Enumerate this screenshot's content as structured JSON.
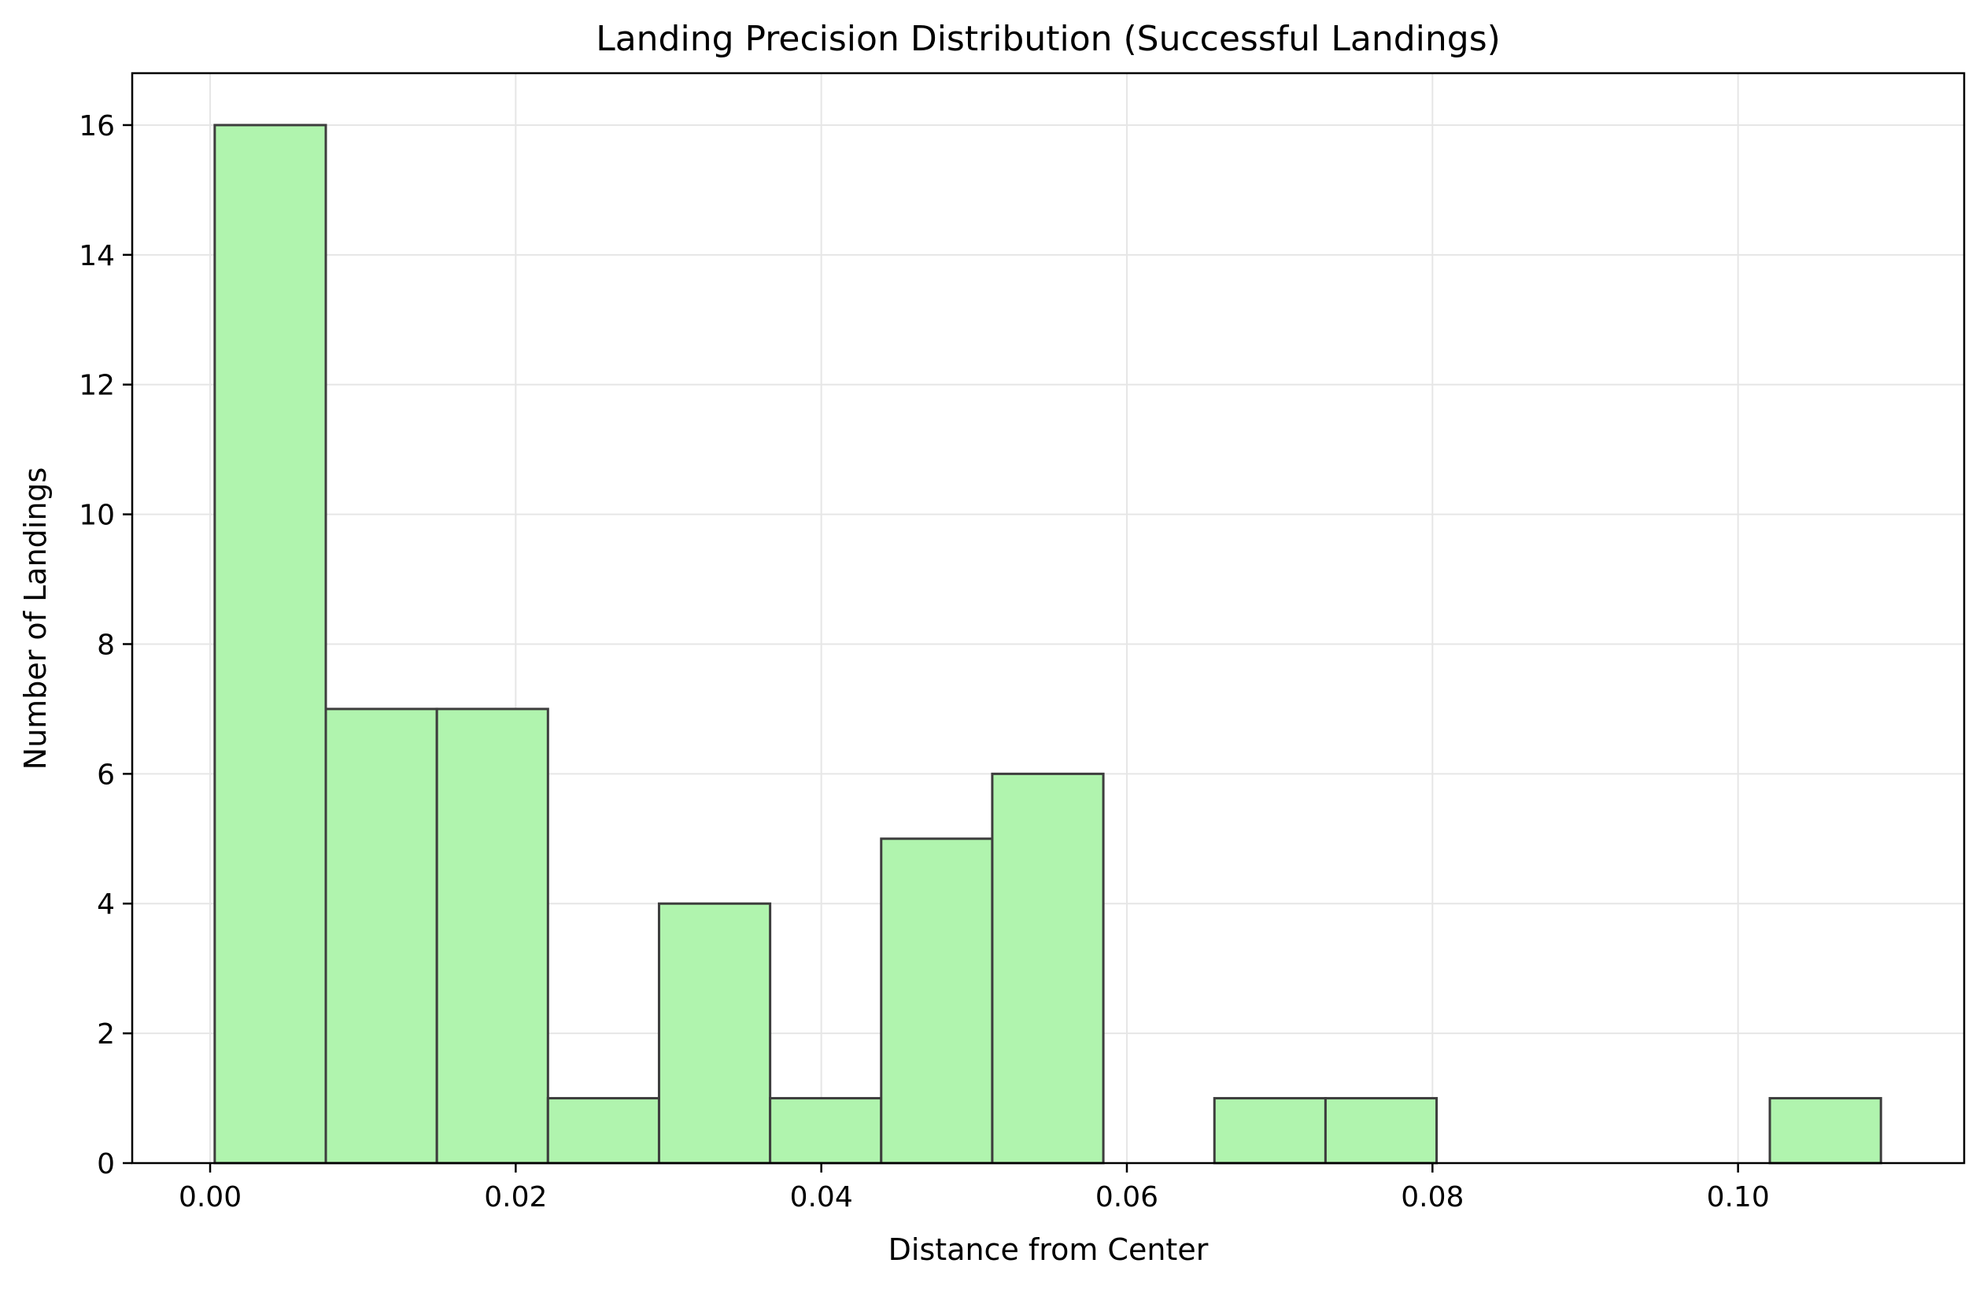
{
  "chart_data": {
    "type": "bar",
    "title": "Landing Precision Distribution (Successful Landings)",
    "xlabel": "Distance from Center",
    "ylabel": "Number of Landings",
    "bin_edges": [
      0.0003,
      0.00757,
      0.01484,
      0.02211,
      0.02938,
      0.03665,
      0.04392,
      0.05119,
      0.05846,
      0.06573,
      0.073,
      0.08027,
      0.08754,
      0.09481,
      0.10208,
      0.10935
    ],
    "counts": [
      16,
      7,
      7,
      1,
      4,
      1,
      5,
      6,
      0,
      1,
      1,
      0,
      0,
      0,
      1
    ],
    "xlim": [
      -0.0051,
      0.1148
    ],
    "ylim": [
      0,
      16.8
    ],
    "xticks": [
      0.0,
      0.02,
      0.04,
      0.06,
      0.08,
      0.1
    ],
    "xtick_labels": [
      "0.00",
      "0.02",
      "0.04",
      "0.06",
      "0.08",
      "0.10"
    ],
    "yticks": [
      0,
      2,
      4,
      6,
      8,
      10,
      12,
      14,
      16
    ],
    "ytick_labels": [
      "0",
      "2",
      "4",
      "6",
      "8",
      "10",
      "12",
      "14",
      "16"
    ],
    "grid": true,
    "colors": {
      "bar_fill": "#b0f4ae",
      "bar_edge": "#3d3d3d",
      "grid": "#e6e6e6",
      "axis": "#000000"
    }
  }
}
